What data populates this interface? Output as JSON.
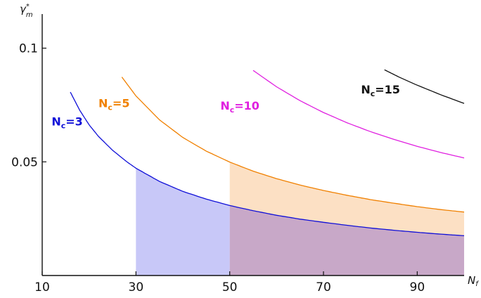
{
  "chart_data": {
    "type": "line",
    "title": "",
    "xlabel": "N_f",
    "ylabel": "γ*_m",
    "xlim": [
      10,
      100
    ],
    "ylim": [
      0,
      0.115
    ],
    "xticks": [
      10,
      30,
      50,
      70,
      90
    ],
    "xtick_labels": [
      "10",
      "30",
      "50",
      "70",
      "90"
    ],
    "yticks": [
      0.05,
      0.1
    ],
    "ytick_labels": [
      "0.05",
      "0.1"
    ],
    "grid": false,
    "series": [
      {
        "name": "N_c=3",
        "label_main": "N",
        "label_sub": "c",
        "label_tail": "=3",
        "color": "#1010d8",
        "x": [
          16,
          18,
          20,
          22,
          25,
          28,
          30,
          35,
          40,
          45,
          50,
          55,
          60,
          65,
          70,
          75,
          80,
          85,
          90,
          95,
          100
        ],
        "y": [
          0.0807,
          0.0727,
          0.0663,
          0.0612,
          0.0551,
          0.0501,
          0.0472,
          0.0414,
          0.037,
          0.0336,
          0.0308,
          0.0285,
          0.0265,
          0.0248,
          0.0234,
          0.0221,
          0.0209,
          0.0199,
          0.019,
          0.0182,
          0.0175
        ]
      },
      {
        "name": "N_c=5",
        "label_main": "N",
        "label_sub": "c",
        "label_tail": "=5",
        "color": "#f08000",
        "x": [
          27,
          30,
          35,
          40,
          45,
          50,
          55,
          60,
          65,
          70,
          75,
          80,
          85,
          90,
          95,
          100
        ],
        "y": [
          0.0873,
          0.079,
          0.0685,
          0.0607,
          0.0547,
          0.0499,
          0.0459,
          0.0426,
          0.0398,
          0.0374,
          0.0353,
          0.0334,
          0.0318,
          0.0303,
          0.029,
          0.0279
        ]
      },
      {
        "name": "N_c=10",
        "label_main": "N",
        "label_sub": "c",
        "label_tail": "=10",
        "color": "#e020e0",
        "x": [
          55,
          60,
          65,
          70,
          75,
          80,
          85,
          90,
          95,
          100
        ],
        "y": [
          0.0902,
          0.083,
          0.0769,
          0.0717,
          0.0672,
          0.0633,
          0.0599,
          0.0568,
          0.0541,
          0.0517
        ]
      },
      {
        "name": "N_c=15",
        "label_main": "N",
        "label_sub": "c",
        "label_tail": "=15",
        "color": "#111111",
        "x": [
          83,
          86,
          90,
          95,
          100
        ],
        "y": [
          0.0905,
          0.0874,
          0.0837,
          0.0795,
          0.0757
        ]
      }
    ],
    "shaded_regions": [
      {
        "between": "axis_and_N_c=3",
        "x_range": [
          30,
          50
        ],
        "color": "#c8c8f8"
      },
      {
        "between": "axis_and_N_c=3",
        "x_range": [
          50,
          100
        ],
        "color": "#c8a8c8"
      },
      {
        "between": "N_c=3_and_N_c=5",
        "x_range": [
          50,
          100
        ],
        "color": "#fce0c4"
      }
    ]
  }
}
